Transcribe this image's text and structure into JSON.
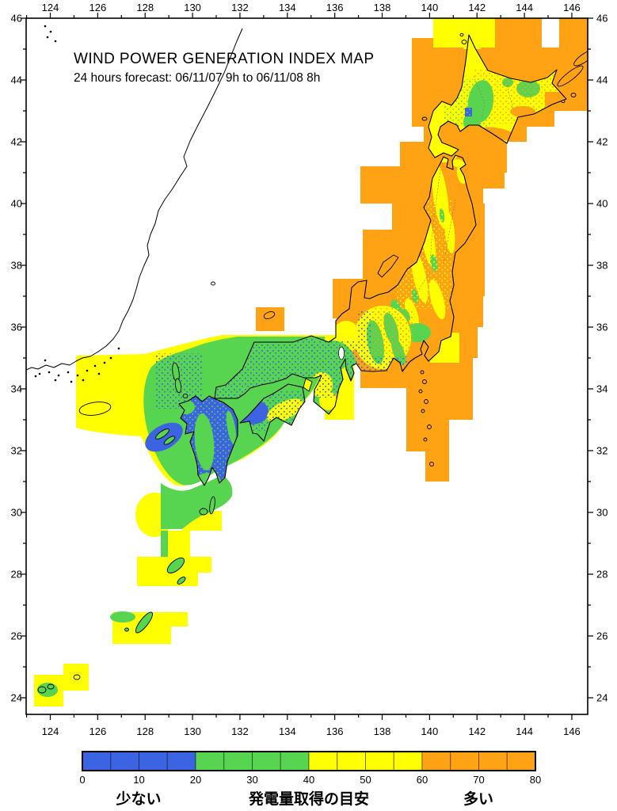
{
  "map": {
    "title": "WIND POWER GENERATION INDEX MAP",
    "subtitle": "24 hours forecast: 06/11/07 9h to 06/11/08 8h",
    "lon_ticks_major": [
      124,
      126,
      128,
      130,
      132,
      134,
      136,
      138,
      140,
      142,
      144,
      146
    ],
    "lon_ticks_minor": [
      123,
      125,
      127,
      129,
      131,
      133,
      135,
      137,
      139,
      141,
      143,
      145
    ],
    "lat_ticks_major": [
      24,
      26,
      28,
      30,
      32,
      34,
      36,
      38,
      40,
      42,
      44,
      46
    ],
    "lat_ticks_minor": [
      25,
      27,
      29,
      31,
      33,
      35,
      37,
      39,
      41,
      43,
      45
    ]
  },
  "legend": {
    "min": 0,
    "max": 80,
    "cell_step": 5,
    "ticks": [
      0,
      10,
      20,
      30,
      40,
      50,
      60,
      70,
      80
    ],
    "bins": [
      {
        "from": 0,
        "to": 20,
        "color_key": "blue"
      },
      {
        "from": 20,
        "to": 40,
        "color_key": "green"
      },
      {
        "from": 40,
        "to": 60,
        "color_key": "yellow"
      },
      {
        "from": 60,
        "to": 80,
        "color_key": "orange"
      }
    ],
    "labels": {
      "low": "少ない",
      "mid": "発電量取得の目安",
      "high": "多い"
    },
    "colors": {
      "blue": "#3c63e2",
      "green": "#57d450",
      "yellow": "#ffff00",
      "orange": "#ffa315"
    }
  }
}
